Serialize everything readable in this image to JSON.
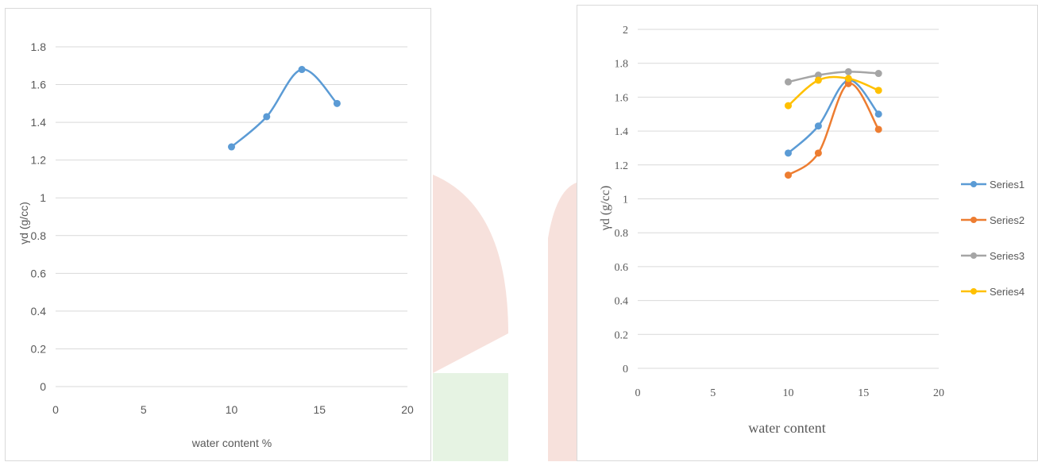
{
  "colors": {
    "series1": "#5b9bd5",
    "series2": "#ed7d31",
    "series3": "#a5a5a5",
    "series4": "#ffc000",
    "grid": "#d9d9d9",
    "axis_text": "#595959",
    "watermark_red": "#e8a89a",
    "watermark_green": "#b8dcb0"
  },
  "chart_data": [
    {
      "type": "scatter",
      "smooth": true,
      "title": "",
      "xlabel": "water content %",
      "ylabel": "γd (g/cc)",
      "xlim": [
        0,
        20
      ],
      "ylim": [
        0,
        1.8
      ],
      "xticks": [
        0,
        5,
        10,
        15,
        20
      ],
      "yticks": [
        0,
        0.2,
        0.4,
        0.6,
        0.8,
        1,
        1.2,
        1.4,
        1.6,
        1.8
      ],
      "grid": true,
      "legend": "none",
      "series": [
        {
          "color_key": "series1",
          "x": [
            10,
            12,
            14,
            16
          ],
          "y": [
            1.27,
            1.43,
            1.68,
            1.5
          ]
        }
      ]
    },
    {
      "type": "scatter",
      "smooth": true,
      "title": "",
      "xlabel": "water content",
      "ylabel": "γd (g/cc)",
      "xlim": [
        0,
        20
      ],
      "ylim": [
        0,
        2
      ],
      "xticks": [
        0,
        5,
        10,
        15,
        20
      ],
      "yticks": [
        0,
        0.2,
        0.4,
        0.6,
        0.8,
        1,
        1.2,
        1.4,
        1.6,
        1.8,
        2
      ],
      "grid": true,
      "legend": "right",
      "series": [
        {
          "name": "Series1",
          "color_key": "series1",
          "x": [
            10,
            12,
            14,
            16
          ],
          "y": [
            1.27,
            1.43,
            1.7,
            1.5
          ]
        },
        {
          "name": "Series2",
          "color_key": "series2",
          "x": [
            10,
            12,
            14,
            16
          ],
          "y": [
            1.14,
            1.27,
            1.68,
            1.41
          ]
        },
        {
          "name": "Series3",
          "color_key": "series3",
          "x": [
            10,
            12,
            14,
            16
          ],
          "y": [
            1.69,
            1.73,
            1.75,
            1.74
          ]
        },
        {
          "name": "Series4",
          "color_key": "series4",
          "x": [
            10,
            12,
            14,
            16
          ],
          "y": [
            1.55,
            1.7,
            1.71,
            1.64
          ]
        }
      ]
    }
  ]
}
